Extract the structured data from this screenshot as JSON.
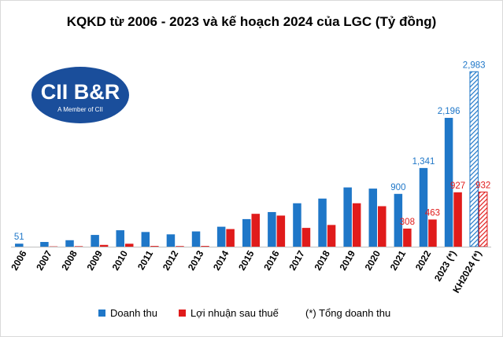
{
  "title": "KQKD từ 2006 - 2023 và kế hoạch 2024 của LGC (Tỷ đồng)",
  "logo": {
    "brand": "CII B&R",
    "tagline": "A Member of CII"
  },
  "legend": {
    "revenue": "Doanh thu",
    "profit": "Lợi nhuận sau thuế",
    "note": "(*) Tổng doanh thu"
  },
  "colors": {
    "revenue": "#1f77c8",
    "profit": "#e01b1b",
    "logo_bg": "#1a4e9b"
  },
  "chart_data": {
    "type": "bar",
    "title": "KQKD từ 2006 - 2023 và kế hoạch 2024 của LGC (Tỷ đồng)",
    "categories": [
      "2006",
      "2007",
      "2008",
      "2009",
      "2010",
      "2011",
      "2012",
      "2013",
      "2014",
      "2015",
      "2016",
      "2017",
      "2018",
      "2019",
      "2020",
      "2021",
      "2022",
      "2023 (*)",
      "KH2024 (*)"
    ],
    "series": [
      {
        "name": "Doanh thu",
        "values": [
          51,
          80,
          110,
          200,
          280,
          250,
          210,
          260,
          340,
          470,
          590,
          740,
          820,
          1010,
          990,
          900,
          1341,
          2196,
          2983
        ],
        "labels": [
          "51",
          "",
          "",
          "",
          "",
          "",
          "",
          "",
          "",
          "",
          "",
          "",
          "",
          "",
          "",
          "900",
          "1,341",
          "2,196",
          "2,983"
        ]
      },
      {
        "name": "Lợi nhuận sau thuế",
        "values": [
          0,
          5,
          8,
          30,
          50,
          12,
          10,
          12,
          300,
          560,
          530,
          320,
          370,
          740,
          690,
          308,
          463,
          927,
          932
        ],
        "labels": [
          "",
          "",
          "",
          "",
          "",
          "",
          "",
          "",
          "",
          "",
          "",
          "",
          "",
          "",
          "",
          "308",
          "463",
          "927",
          "932"
        ]
      }
    ],
    "hatched_categories": [
      "KH2024 (*)"
    ],
    "ylim": [
      0,
      3000
    ],
    "xlabel": "",
    "ylabel": "",
    "grid": false,
    "legend_position": "bottom"
  }
}
